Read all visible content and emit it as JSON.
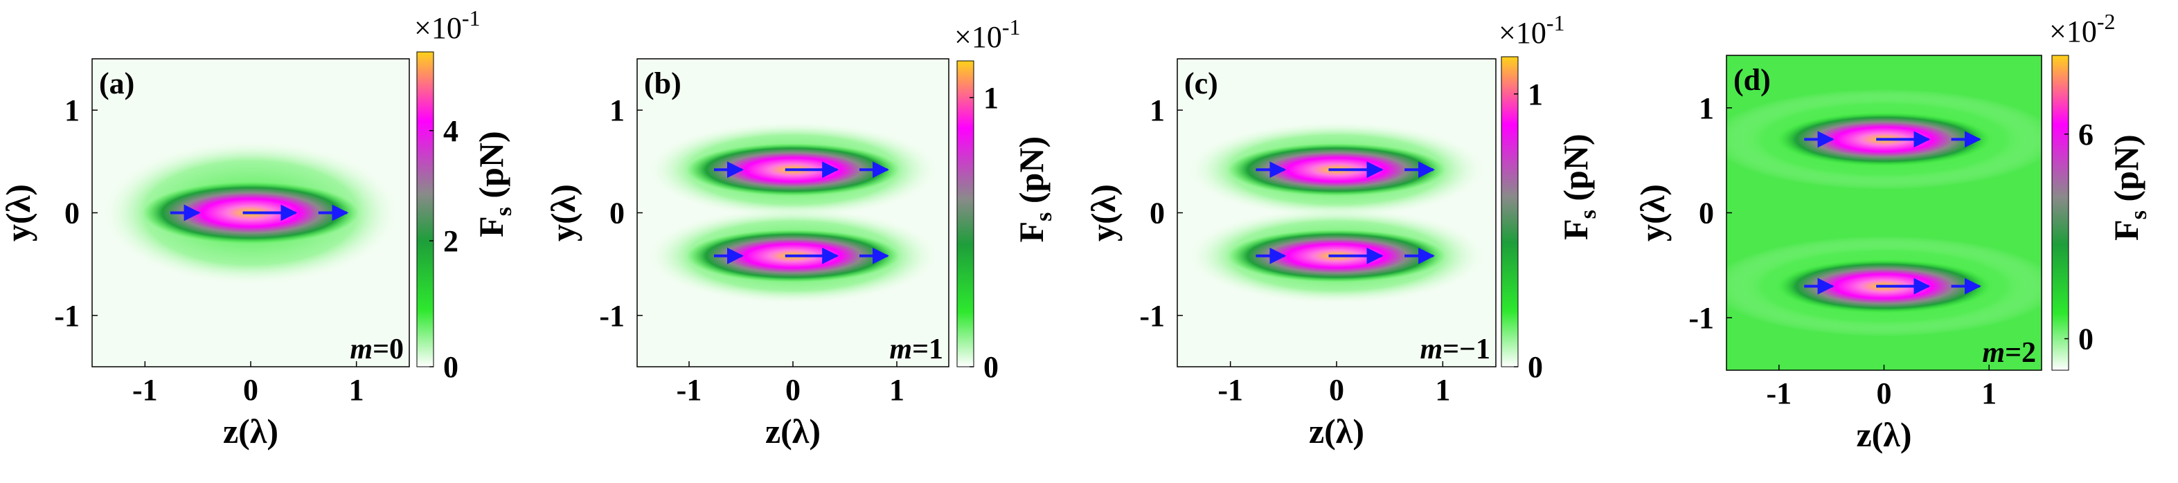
{
  "chart_data": [
    {
      "type": "heatmap",
      "panel_label": "(a)",
      "mode": "0",
      "x_label": "z(λ)",
      "y_label": "y(λ)",
      "xlim": [
        -1.5,
        1.5
      ],
      "ylim": [
        -1.5,
        1.5
      ],
      "x_ticks": [
        "-1",
        "0",
        "1"
      ],
      "y_ticks": [
        "1",
        "0",
        "-1"
      ],
      "colorbar_label": "F",
      "colorbar_sub": "s",
      "colorbar_unit": "(pN)",
      "colorbar_exponent": "×10-1",
      "colorbar_ticks": [
        "4",
        "2",
        "0"
      ],
      "lobe_centers_y": [
        0
      ],
      "arrow_positions_z": [
        -0.6,
        0.2,
        0.8
      ]
    },
    {
      "type": "heatmap",
      "panel_label": "(b)",
      "mode": "1",
      "x_label": "z(λ)",
      "y_label": "y(λ)",
      "xlim": [
        -1.5,
        1.5
      ],
      "ylim": [
        -1.5,
        1.5
      ],
      "x_ticks": [
        "-1",
        "0",
        "1"
      ],
      "y_ticks": [
        "1",
        "0",
        "-1"
      ],
      "colorbar_label": "F",
      "colorbar_sub": "s",
      "colorbar_unit": "(pN)",
      "colorbar_exponent": "×10-1",
      "colorbar_ticks": [
        "1",
        "0"
      ],
      "lobe_centers_y": [
        0.42,
        -0.42
      ],
      "arrow_positions_z": [
        -0.6,
        0.2,
        0.8
      ]
    },
    {
      "type": "heatmap",
      "panel_label": "(c)",
      "mode": "−1",
      "x_label": "z(λ)",
      "y_label": "y(λ)",
      "xlim": [
        -1.5,
        1.5
      ],
      "ylim": [
        -1.5,
        1.5
      ],
      "x_ticks": [
        "-1",
        "0",
        "1"
      ],
      "y_ticks": [
        "1",
        "0",
        "-1"
      ],
      "colorbar_label": "F",
      "colorbar_sub": "s",
      "colorbar_unit": "(pN)",
      "colorbar_exponent": "×10-1",
      "colorbar_ticks": [
        "1",
        "0"
      ],
      "lobe_centers_y": [
        0.42,
        -0.42
      ],
      "arrow_positions_z": [
        -0.6,
        0.2,
        0.8
      ]
    },
    {
      "type": "heatmap",
      "panel_label": "(d)",
      "mode": "2",
      "x_label": "z(λ)",
      "y_label": "y(λ)",
      "xlim": [
        -1.5,
        1.5
      ],
      "ylim": [
        -1.5,
        1.5
      ],
      "x_ticks": [
        "-1",
        "0",
        "1"
      ],
      "y_ticks": [
        "1",
        "0",
        "-1"
      ],
      "colorbar_label": "F",
      "colorbar_sub": "s",
      "colorbar_unit": "(pN)",
      "colorbar_exponent": "×10-2",
      "colorbar_ticks": [
        "6",
        "0"
      ],
      "lobe_centers_y": [
        0.7,
        -0.7
      ],
      "arrow_positions_z": [
        -0.6,
        0.2,
        0.8
      ]
    }
  ],
  "colors": {
    "colormap": [
      "#ffffff",
      "#2ee82e",
      "#1e9e3a",
      "#8a8a8a",
      "#ff00ff",
      "#ffd21a"
    ],
    "arrow": "#1a1aff"
  }
}
